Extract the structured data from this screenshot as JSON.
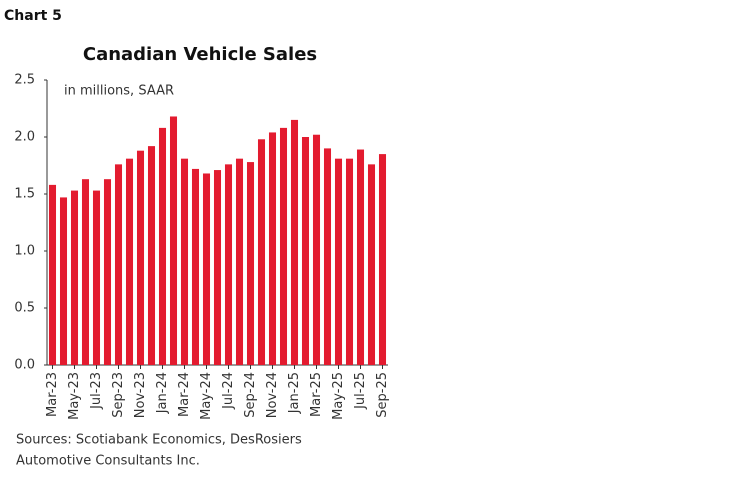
{
  "header": {
    "label": "Chart 5"
  },
  "chart_data": {
    "type": "bar",
    "title": "Canadian Vehicle Sales",
    "subtitle": "in millions, SAAR",
    "categories": [
      "Mar-23",
      null,
      "May-23",
      null,
      "Jul-23",
      null,
      "Sep-23",
      null,
      "Nov-23",
      null,
      "Jan-24",
      null,
      "Mar-24",
      null,
      "May-24",
      null,
      "Jul-24",
      null,
      "Sep-24",
      null,
      "Nov-24",
      null,
      "Jan-25",
      null,
      "Mar-25",
      null,
      "May-25",
      null,
      "Jul-25",
      null,
      "Sep-25"
    ],
    "values": [
      1.58,
      1.47,
      1.53,
      1.63,
      1.53,
      1.63,
      1.76,
      1.81,
      1.88,
      1.92,
      2.08,
      2.18,
      1.81,
      1.72,
      1.68,
      1.71,
      1.76,
      1.81,
      1.78,
      1.98,
      2.04,
      2.08,
      2.15,
      2.0,
      2.02,
      1.9,
      1.81,
      1.81,
      1.89,
      1.76,
      1.85
    ],
    "color": "#e31b2f",
    "ylim": [
      0,
      2.5
    ],
    "yticks": [
      {
        "value": 0,
        "label": "0.0"
      },
      0.5,
      {
        "value": 1,
        "label": "1.0"
      },
      1.5,
      {
        "value": 2,
        "label": "2.0"
      },
      2.5
    ],
    "grid": false,
    "source": [
      "Sources: Scotiabank Economics, DesRosiers",
      "Automotive Consultants Inc."
    ]
  }
}
